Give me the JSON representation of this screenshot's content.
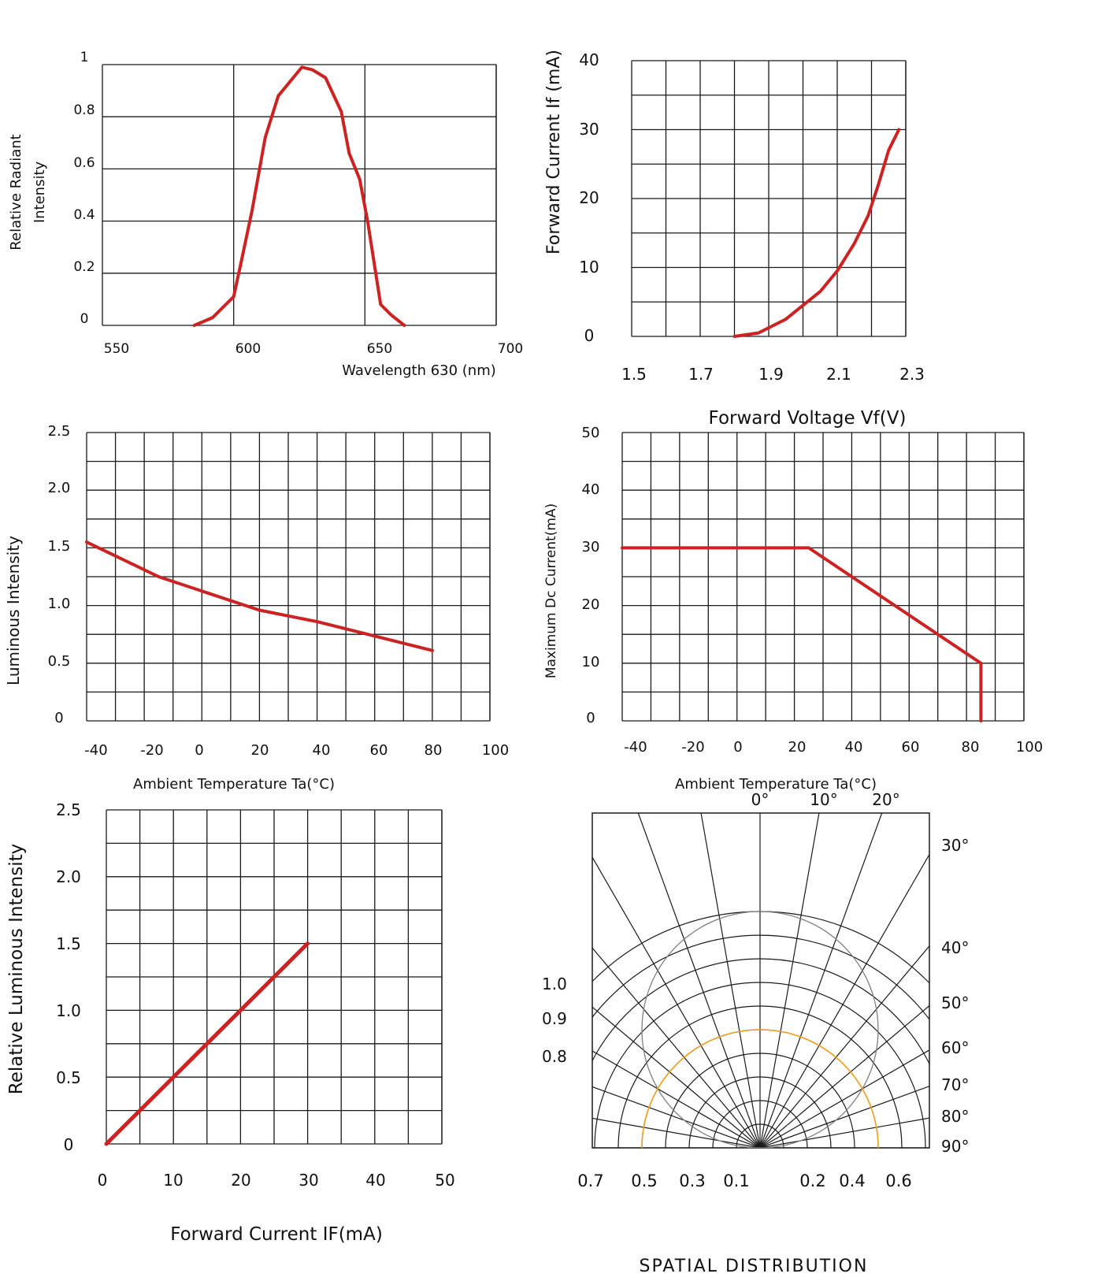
{
  "colors": {
    "curve": "#cc2222",
    "grid": "#1a1a1a",
    "orange": "#f0a020",
    "ref_circle": "#808080"
  },
  "chart_data": [
    {
      "id": "spectrum",
      "type": "line",
      "title": "",
      "xlabel": "Wavelength 630   (nm)",
      "ylabel_lines": [
        "Relative Radiant",
        "Intensity"
      ],
      "xlim": [
        550,
        700
      ],
      "ylim": [
        0,
        1
      ],
      "x_ticks": [
        "550",
        "600",
        "650",
        "700"
      ],
      "y_ticks": [
        "0",
        "0.2",
        "0.4",
        "0.6",
        "0.8",
        "1"
      ],
      "grid": true,
      "series": [
        {
          "x": [
            585,
            592,
            600,
            603,
            607,
            612,
            617,
            626,
            630,
            635,
            641,
            644,
            648,
            651,
            656,
            660,
            665
          ],
          "y": [
            0,
            0.03,
            0.11,
            0.25,
            0.44,
            0.72,
            0.88,
            0.99,
            0.98,
            0.95,
            0.82,
            0.66,
            0.56,
            0.4,
            0.08,
            0.04,
            0
          ]
        }
      ]
    },
    {
      "id": "iv-curve",
      "type": "line",
      "title": "",
      "xlabel": "Forward Voltage Vf(V)",
      "ylabel": "Forward Current If (mA)",
      "xlim": [
        1.5,
        2.3
      ],
      "ylim": [
        0,
        40
      ],
      "x_ticks": [
        "1.5",
        "1.7",
        "1.9",
        "2.1",
        "2.3"
      ],
      "y_ticks": [
        "0",
        "10",
        "20",
        "30",
        "40"
      ],
      "grid": true,
      "series": [
        {
          "x": [
            1.8,
            1.87,
            1.95,
            2.0,
            2.05,
            2.1,
            2.15,
            2.19,
            2.22,
            2.25,
            2.28
          ],
          "y": [
            0,
            0.5,
            2.5,
            4.5,
            6.5,
            9.5,
            13.5,
            17.5,
            22,
            27,
            30
          ]
        }
      ]
    },
    {
      "id": "temp-luminous",
      "type": "line",
      "title": "",
      "xlabel": "Ambient Temperature Ta(°C)",
      "ylabel": "Luminous Intensity",
      "xlim": [
        -40,
        100
      ],
      "ylim": [
        0,
        2.5
      ],
      "x_ticks": [
        "-40",
        "-20",
        "0",
        "20",
        "40",
        "60",
        "80",
        "100"
      ],
      "y_ticks": [
        "0",
        "0.5",
        "1.0",
        "1.5",
        "2.0",
        "2.5"
      ],
      "grid": true,
      "series": [
        {
          "x": [
            -40,
            -15,
            20,
            40,
            80
          ],
          "y": [
            1.55,
            1.25,
            0.96,
            0.86,
            0.61
          ]
        }
      ]
    },
    {
      "id": "derating",
      "type": "line",
      "title": "",
      "xlabel": "Ambient Temperature Ta(°C)",
      "ylabel": "Maximum Dc Current(mA)",
      "xlim": [
        -40,
        100
      ],
      "ylim": [
        0,
        50
      ],
      "x_ticks": [
        "-40",
        "-20",
        "0",
        "20",
        "40",
        "60",
        "80",
        "100"
      ],
      "y_ticks": [
        "0",
        "10",
        "20",
        "30",
        "40",
        "50"
      ],
      "grid": true,
      "series": [
        {
          "x": [
            -40,
            25,
            85,
            85
          ],
          "y": [
            30,
            30,
            10,
            0
          ]
        }
      ]
    },
    {
      "id": "current-luminous",
      "type": "line",
      "title": "",
      "xlabel": "Forward Current IF(mA)",
      "ylabel": "Relative Luminous Intensity",
      "xlim": [
        0,
        50
      ],
      "ylim": [
        0,
        2.5
      ],
      "x_ticks": [
        "0",
        "10",
        "20",
        "30",
        "40",
        "50"
      ],
      "y_ticks": [
        "0",
        "0.5",
        "1.0",
        "1.5",
        "2.0",
        "2.5"
      ],
      "grid": true,
      "series": [
        {
          "x": [
            0,
            30
          ],
          "y": [
            0,
            1.5
          ]
        }
      ]
    },
    {
      "id": "spatial",
      "type": "polar",
      "title": "SPATIAL DISTRIBUTION",
      "top_angle_labels": [
        "0°",
        "10°",
        "20°"
      ],
      "side_angle_labels": [
        "30°",
        "40°",
        "50°",
        "60°",
        "70°",
        "80°",
        "90°"
      ],
      "radial_labels_left": [
        "1.0",
        "0.9",
        "0.8"
      ],
      "bottom_labels": [
        "0.7",
        "0.5",
        "0.3",
        "0.1",
        "0.2",
        "0.4",
        "0.6"
      ],
      "series": [
        {
          "name": "",
          "angle_deg": [
            0,
            90
          ],
          "relative": [
            0.5,
            0.5
          ]
        }
      ]
    }
  ]
}
